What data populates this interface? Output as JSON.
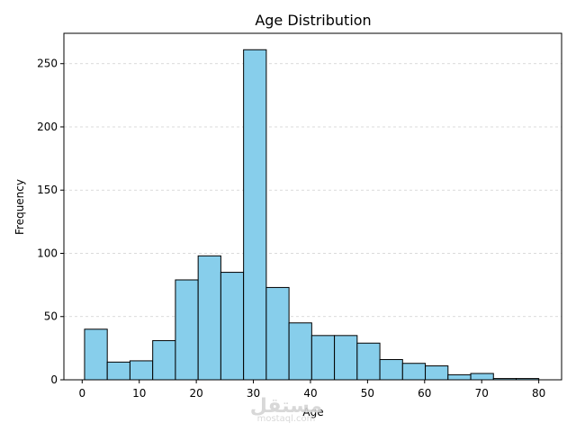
{
  "chart_data": {
    "type": "bar",
    "title": "Age Distribution",
    "xlabel": "Age",
    "ylabel": "Frequency",
    "xlim": [
      -3.2,
      84.0
    ],
    "ylim": [
      0,
      274
    ],
    "grid": "y-axis dashed",
    "x_ticks": [
      0,
      10,
      20,
      30,
      40,
      50,
      60,
      70,
      80
    ],
    "y_ticks": [
      0,
      50,
      100,
      150,
      200,
      250
    ],
    "bin_edges": [
      0.42,
      4.4,
      8.38,
      12.36,
      16.34,
      20.32,
      24.3,
      28.28,
      32.26,
      36.24,
      40.22,
      44.2,
      48.18,
      52.16,
      56.14,
      60.12,
      64.1,
      68.08,
      72.06,
      76.04,
      80.0
    ],
    "values": [
      40,
      14,
      15,
      31,
      79,
      98,
      85,
      261,
      73,
      45,
      35,
      35,
      29,
      16,
      13,
      11,
      4,
      5,
      1,
      1
    ],
    "bar_color": "#87ceeb",
    "edge_color": "#000000"
  },
  "watermark": {
    "logo_text": "مستقل",
    "site_text": "mostaql.com"
  }
}
